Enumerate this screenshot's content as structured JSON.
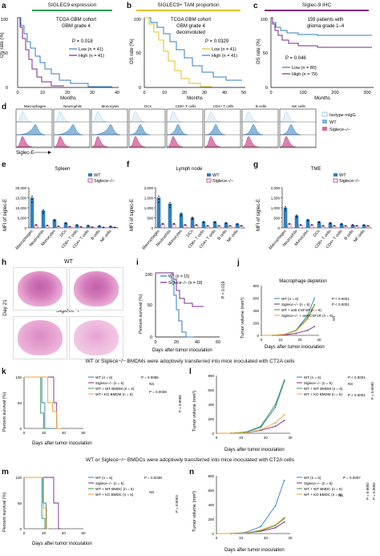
{
  "panels": {
    "a": {
      "letter": "a",
      "header": "SIGLEC9 expression",
      "cohort": "TCGA GBM cohort",
      "subtitle": "GBM grade 4",
      "p": "P = 0.018",
      "legend": [
        "Low (n = 41)",
        "High (n = 41)"
      ],
      "ylabel": "OS rate (%)",
      "xlabel": "Months",
      "yticks": [
        "0",
        "50",
        "100"
      ],
      "xticks": [
        "0",
        "10",
        "20",
        "30",
        "40"
      ],
      "header_color": "#2e9a4a"
    },
    "b": {
      "letter": "b",
      "header": "SIGLEC9+ TAM proportion",
      "cohort": "TCGA GBM cohort",
      "subtitle": "GBM grade 4",
      "subtitle2": "deconvoluted",
      "p": "P = 0.0329",
      "legend": [
        "Low (n = 41)",
        "High (n = 41)"
      ],
      "ylabel": "OS rate (%)",
      "xlabel": "Months",
      "yticks": [
        "0",
        "50",
        "100"
      ],
      "xticks": [
        "0",
        "10",
        "20",
        "30",
        "40",
        "50"
      ],
      "header_color": "#e0c21d"
    },
    "c": {
      "letter": "c",
      "header": "Siglec-9 IHC",
      "cohort": "159 patients with",
      "subtitle": "glioma grade 1–4",
      "p": "P = 0.046",
      "legend": [
        "Low (n = 80)",
        "High (n = 79)"
      ],
      "ylabel": "OS rate (%)",
      "xlabel": "Months",
      "yticks": [
        "0",
        "50",
        "100"
      ],
      "xticks": [
        "0",
        "100",
        "200",
        "300"
      ],
      "header_color": "#8a1f7a"
    },
    "d": {
      "letter": "d",
      "cells": [
        "Macrophages",
        "Neutrophils",
        "Monocytes",
        "DCs",
        "CD8+ T cells",
        "CD4+ T cells",
        "B cells",
        "NK cells"
      ],
      "legend": [
        "Isotype mIgG",
        "WT",
        "Siglece−/−"
      ],
      "xlabel": "Siglec-E"
    },
    "e": {
      "letter": "e",
      "title": "Spleen",
      "legend": [
        "WT",
        "Siglece−/−"
      ],
      "ylabel": "MFI of siglec-E",
      "yticks": [
        "0",
        "5,000",
        "10,000",
        "15,000",
        "20,000"
      ]
    },
    "f": {
      "letter": "f",
      "title": "Lymph node",
      "legend": [
        "WT",
        "Siglece−/−"
      ],
      "ylabel": "MFI of siglec-E",
      "yticks": [
        "0",
        "500",
        "1,000",
        "1,500",
        "2,000"
      ]
    },
    "g": {
      "letter": "g",
      "title": "TME",
      "legend": [
        "WT",
        "Siglece−/−"
      ],
      "ylabel": "MFI of siglec-E",
      "yticks": [
        "0",
        "500",
        "1,000",
        "1,500",
        "2,000"
      ]
    },
    "h": {
      "letter": "h",
      "wt": "WT",
      "ko": "Siglece−/−",
      "day": "Day 21"
    },
    "i": {
      "letter": "i",
      "legend": [
        "WT (n = 15)",
        "Siglece−/− (n = 18)"
      ],
      "p": "P = 0.019",
      "ylabel": "Percent survival (%)",
      "xlabel": "Days after tumor inoculation",
      "yticks": [
        "0",
        "50",
        "100"
      ],
      "xticks": [
        "0",
        "20",
        "40",
        "60"
      ]
    },
    "j": {
      "letter": "j",
      "title": "Macrophage depletion",
      "legend": [
        "WT (n = 6)",
        "Siglece−/− (n = 6)",
        "WT + anti-CSF1R (n = 6)",
        "Siglece−/− + anti-CSF1R (n = 6)"
      ],
      "p": [
        "P < 0.0001",
        "P < 0.0001",
        "NS"
      ],
      "ylabel": "Tumor volume (mm³)",
      "xlabel": "Days after tumor inoculation",
      "yticks": [
        "0",
        "200",
        "400",
        "600",
        "800"
      ],
      "xticks": [
        "0",
        "10",
        "20",
        "30"
      ]
    },
    "k": {
      "letter": "k",
      "legend": [
        "WT (n = 6)",
        "Siglece−/− (n = 6)",
        "WT + WT BMDM (n = 6)",
        "WT+ KO BMDM (n = 6)"
      ],
      "p": [
        "P = 0.0086",
        "P = 0.0038",
        "NS",
        "P = 0.0068"
      ],
      "ylabel": "Percent survival (%)",
      "xlabel": "Days after tumor inoculation",
      "yticks": [
        "0",
        "50",
        "100"
      ],
      "xticks": [
        "0",
        "20",
        "40",
        "60"
      ]
    },
    "l": {
      "letter": "l",
      "legend": [
        "WT (n = 6)",
        "Siglece−/− (n = 6)",
        "WT + WT BMDM (n = 6)",
        "WT + KO BMDM (n = 6)"
      ],
      "p": [
        "P < 0.0001",
        "NS",
        "P < 0.0001",
        "P = 0.0030"
      ],
      "ylabel": "Tumor volume (mm³)",
      "xlabel": "Days after tumor inoculation",
      "yticks": [
        "0",
        "200",
        "400",
        "600",
        "800"
      ],
      "xticks": [
        "0",
        "10",
        "20",
        "30"
      ]
    },
    "m": {
      "letter": "m",
      "legend": [
        "WT (n = 6)",
        "Siglece−/− (n = 6)",
        "WT + WT BMDC (n = 6)",
        "WT + KO BMDC (n = 6)"
      ],
      "p": [
        "P = 0.0038",
        "P = 0.0053",
        "NS"
      ],
      "ylabel": "Percent survival (%)",
      "xlabel": "Days after tumor inoculation",
      "yticks": [
        "0",
        "50",
        "100"
      ],
      "xticks": [
        "0",
        "20",
        "40",
        "60"
      ]
    },
    "n": {
      "letter": "n",
      "legend": [
        "WT (n = 6)",
        "Siglece−/− (n = 6)",
        "WT + WT BMDC (n = 6)",
        "WT + KO BMDC (n = 6)"
      ],
      "p": [
        "P = 0.0007",
        "P = 0.0002",
        "P = 0.0002",
        "NS"
      ],
      "ylabel": "Tumor volume (mm³)",
      "xlabel": "Days after tumor inoculation",
      "yticks": [
        "0",
        "200",
        "400",
        "600",
        "800"
      ],
      "xticks": [
        "0",
        "10",
        "20",
        "30"
      ]
    }
  },
  "sections": {
    "bmdm": "WT or Siglece−/− BMDMs were adoptively transferred into mice inoculated with CT2A cells",
    "bmdc": "WT or Siglece−/− BMDCs were adoptively transferred into mice inoculated with CT2A cells"
  },
  "bar_categories": [
    "Macrophages",
    "Neutrophils",
    "Monocytes",
    "DCs",
    "CD8+ T cells",
    "CD4+ T cells",
    "B cells",
    "NK cells"
  ],
  "chart_data": [
    {
      "type": "bar",
      "panel": "e",
      "title": "Spleen",
      "categories": [
        "Macrophages",
        "Neutrophils",
        "Monocytes",
        "DCs",
        "CD8+ T cells",
        "CD4+ T cells",
        "B cells",
        "NK cells"
      ],
      "series": [
        {
          "name": "WT",
          "values": [
            15000,
            8500,
            4000,
            2500,
            1500,
            1200,
            1000,
            800
          ]
        },
        {
          "name": "Siglece−/−",
          "values": [
            1500,
            1200,
            800,
            600,
            500,
            400,
            300,
            300
          ]
        }
      ],
      "ylim": [
        0,
        20000
      ]
    },
    {
      "type": "bar",
      "panel": "f",
      "title": "Lymph node",
      "categories": [
        "Macrophages",
        "Neutrophils",
        "Monocytes",
        "DCs",
        "CD8+ T cells",
        "CD4+ T cells",
        "B cells",
        "NK cells"
      ],
      "series": [
        {
          "name": "WT",
          "values": [
            1500,
            1200,
            700,
            500,
            300,
            300,
            250,
            200
          ]
        },
        {
          "name": "Siglece−/−",
          "values": [
            200,
            200,
            150,
            150,
            100,
            100,
            100,
            100
          ]
        }
      ],
      "ylim": [
        0,
        2000
      ]
    },
    {
      "type": "bar",
      "panel": "g",
      "title": "TME",
      "categories": [
        "Macrophages",
        "Neutrophils",
        "Monocytes",
        "DCs",
        "CD8+ T cells",
        "CD4+ T cells",
        "B cells",
        "NK cells"
      ],
      "series": [
        {
          "name": "WT",
          "values": [
            1000,
            600,
            400,
            300,
            250,
            200,
            150,
            150
          ]
        },
        {
          "name": "Siglece−/−",
          "values": [
            200,
            150,
            150,
            100,
            100,
            100,
            100,
            100
          ]
        }
      ],
      "ylim": [
        0,
        2000
      ]
    }
  ],
  "colors": {
    "blue": "#2f7fc1",
    "purple": "#7a2a8c",
    "green": "#2e9a4a",
    "yellow": "#e3c21f",
    "orange": "#f0a030",
    "lightblue": "#9ecae9",
    "pink": "#c3307b"
  }
}
